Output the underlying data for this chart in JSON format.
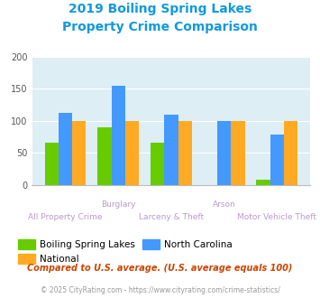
{
  "title_line1": "2019 Boiling Spring Lakes",
  "title_line2": "Property Crime Comparison",
  "categories": [
    "All Property Crime",
    "Burglary",
    "Larceny & Theft",
    "Arson",
    "Motor Vehicle Theft"
  ],
  "bsl_values": [
    65,
    90,
    65,
    0,
    8
  ],
  "nc_values": [
    112,
    154,
    110,
    100,
    79
  ],
  "national_values": [
    100,
    100,
    100,
    100,
    100
  ],
  "bsl_color": "#66cc00",
  "nc_color": "#4499ff",
  "national_color": "#ffaa22",
  "ylim": [
    0,
    200
  ],
  "yticks": [
    0,
    50,
    100,
    150,
    200
  ],
  "legend_labels": [
    "Boiling Spring Lakes",
    "National",
    "North Carolina"
  ],
  "footnote1": "Compared to U.S. average. (U.S. average equals 100)",
  "footnote2": "© 2025 CityRating.com - https://www.cityrating.com/crime-statistics/",
  "title_color": "#1199dd",
  "plot_bg": "#ddeef5",
  "upper_labels": [
    "Burglary",
    "Arson"
  ],
  "upper_label_indices": [
    1,
    3
  ],
  "lower_labels": [
    "All Property Crime",
    "Larceny & Theft",
    "Motor Vehicle Theft"
  ],
  "lower_label_indices": [
    0,
    2,
    4
  ],
  "cat_label_color": "#bb99cc",
  "footnote1_color": "#cc4400",
  "footnote2_color": "#999999"
}
